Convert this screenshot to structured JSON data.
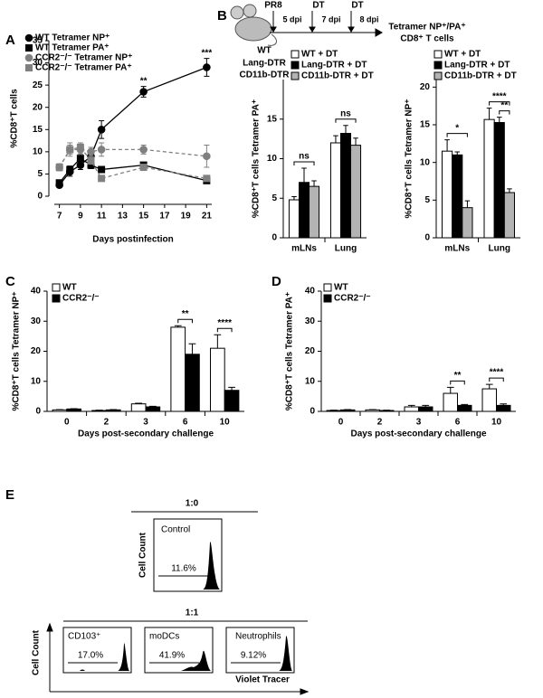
{
  "chart_data": [
    {
      "panel": "A",
      "type": "line",
      "y_label": "%CD8⁺T cells",
      "x_label": "Days postinfection",
      "x": [
        7,
        8,
        9,
        10,
        11,
        15,
        21
      ],
      "xlim": [
        6,
        22
      ],
      "xticks": [
        7,
        9,
        11,
        13,
        15,
        17,
        19,
        21
      ],
      "ylim": [
        0,
        35
      ],
      "yticks": [
        0,
        5,
        10,
        15,
        20,
        25,
        30,
        35
      ],
      "series": [
        {
          "name": "WT Tetramer NP⁺",
          "color": "#000000",
          "marker": "circle",
          "dashed": false,
          "values": [
            2.5,
            5.5,
            7,
            9,
            15,
            23.5,
            29
          ],
          "errors": [
            0.5,
            1,
            1,
            1,
            2,
            1.2,
            2
          ]
        },
        {
          "name": "WT Tetramer PA⁺",
          "color": "#000000",
          "marker": "square",
          "dashed": false,
          "values": [
            3,
            6,
            8.5,
            7,
            6,
            7,
            3.5
          ],
          "errors": [
            0.3,
            0.8,
            1,
            0.8,
            0.6,
            0.5,
            0.3
          ]
        },
        {
          "name": "CCR2⁻/⁻ Tetramer NP⁺",
          "color": "#808080",
          "marker": "circle",
          "dashed": true,
          "values": [
            6.5,
            10.5,
            10.5,
            10,
            10.5,
            10.5,
            9
          ],
          "errors": [
            0.8,
            1,
            1,
            1,
            1.5,
            1,
            2.5
          ]
        },
        {
          "name": "CCR2⁻/⁻ Tetramer PA⁺",
          "color": "#808080",
          "marker": "square",
          "dashed": true,
          "values": [
            6.5,
            10.5,
            11,
            8,
            4,
            6.5,
            4
          ],
          "errors": [
            0.8,
            1.5,
            1,
            0.8,
            0.5,
            0.5,
            0.5
          ]
        }
      ],
      "annotations": [
        {
          "text": "**",
          "x": 15
        },
        {
          "text": "***",
          "x": 21
        }
      ]
    },
    {
      "type": "bar",
      "y_label": "%CD8⁺T cells Tetramer PA⁺",
      "categories": [
        "mLNs",
        "Lung"
      ],
      "ylim": [
        0,
        20
      ],
      "yticks": [
        0,
        5,
        10,
        15
      ],
      "series": [
        {
          "name": "WT + DT",
          "color": "#ffffff",
          "values": [
            4.8,
            12
          ],
          "errors": [
            0.4,
            0.9
          ]
        },
        {
          "name": "Lang-DTR + DT",
          "color": "#000000",
          "values": [
            7,
            13.2
          ],
          "errors": [
            1.8,
            1
          ]
        },
        {
          "name": "CD11b-DTR + DT",
          "color": "#b3b3b3",
          "values": [
            6.5,
            11.7
          ],
          "errors": [
            0.7,
            0.9
          ]
        }
      ],
      "annotations": [
        {
          "text": "ns",
          "category": "mLNs",
          "between": [
            "WT + DT",
            "CD11b-DTR + DT"
          ]
        },
        {
          "text": "ns",
          "category": "Lung",
          "between": [
            "WT + DT",
            "CD11b-DTR + DT"
          ]
        }
      ]
    },
    {
      "type": "bar",
      "y_label": "%CD8⁺T cells Tetramer NP⁺",
      "categories": [
        "mLNs",
        "Lung"
      ],
      "ylim": [
        0,
        21
      ],
      "yticks": [
        0,
        5,
        10,
        15,
        20
      ],
      "series": [
        {
          "name": "WT + DT",
          "color": "#ffffff",
          "values": [
            11.5,
            15.7
          ],
          "errors": [
            1.5,
            1.5
          ]
        },
        {
          "name": "Lang-DTR + DT",
          "color": "#000000",
          "values": [
            11,
            15.3
          ],
          "errors": [
            0.4,
            0.7
          ]
        },
        {
          "name": "CD11b-DTR + DT",
          "color": "#b3b3b3",
          "values": [
            4,
            6
          ],
          "errors": [
            0.9,
            0.5
          ]
        }
      ],
      "annotations": [
        {
          "text": "*",
          "category": "mLNs",
          "between": [
            "WT + DT",
            "CD11b-DTR + DT"
          ]
        },
        {
          "text": "****",
          "category": "Lung",
          "between": [
            "WT + DT",
            "CD11b-DTR + DT"
          ]
        },
        {
          "text": "**",
          "category": "Lung",
          "between": [
            "Lang-DTR + DT",
            "CD11b-DTR + DT"
          ]
        }
      ]
    },
    {
      "panel": "C",
      "type": "bar",
      "y_label": "%CD8⁺T cells Tetramer NP⁺",
      "x_label": "Days post-secondary challenge",
      "categories": [
        "0",
        "2",
        "3",
        "6",
        "10"
      ],
      "ylim": [
        0,
        40
      ],
      "yticks": [
        0,
        10,
        20,
        30,
        40
      ],
      "series": [
        {
          "name": "WT",
          "color": "#ffffff",
          "values": [
            0.5,
            0.3,
            2.5,
            28,
            21
          ],
          "errors": [
            0.1,
            0.1,
            0.2,
            0.5,
            4.5
          ]
        },
        {
          "name": "CCR2⁻/⁻",
          "color": "#000000",
          "values": [
            0.8,
            0.5,
            1.5,
            19,
            7
          ],
          "errors": [
            0.1,
            0.1,
            0.2,
            3.5,
            1
          ]
        }
      ],
      "annotations": [
        {
          "text": "**",
          "category": "6",
          "between": [
            "WT",
            "CCR2⁻/⁻"
          ]
        },
        {
          "text": "****",
          "category": "10",
          "between": [
            "WT",
            "CCR2⁻/⁻"
          ]
        }
      ]
    },
    {
      "panel": "D",
      "type": "bar",
      "y_label": "%CD8⁺T cells Tetramer PA⁺",
      "x_label": "Days post-secondary challenge",
      "categories": [
        "0",
        "2",
        "3",
        "6",
        "10"
      ],
      "ylim": [
        0,
        40
      ],
      "yticks": [
        0,
        10,
        20,
        30,
        40
      ],
      "series": [
        {
          "name": "WT",
          "color": "#ffffff",
          "values": [
            0.3,
            0.5,
            1.5,
            6,
            7.5
          ],
          "errors": [
            0.1,
            0.1,
            0.5,
            2,
            1.5
          ]
        },
        {
          "name": "CCR2⁻/⁻",
          "color": "#000000",
          "values": [
            0.5,
            0.3,
            1.5,
            2,
            2
          ],
          "errors": [
            0.1,
            0.1,
            0.5,
            0.3,
            0.5
          ]
        }
      ],
      "annotations": [
        {
          "text": "**",
          "category": "6",
          "between": [
            "WT",
            "CCR2⁻/⁻"
          ]
        },
        {
          "text": "****",
          "category": "10",
          "between": [
            "WT",
            "CCR2⁻/⁻"
          ]
        }
      ]
    }
  ],
  "schema": {
    "panel": "B",
    "infection": "PR8",
    "treatments": [
      "DT",
      "DT"
    ],
    "timepoints": [
      "5 dpi",
      "7 dpi",
      "8 dpi"
    ],
    "readout": [
      "Tetramer NP⁺/PA⁺",
      "CD8⁺ T cells"
    ],
    "mice": [
      "WT",
      "Lang-DTR",
      "CD11b-DTR"
    ]
  },
  "flow_panel": {
    "panel": "E",
    "ratio_top": "1:0",
    "ratio_bottom": "1:1",
    "y_label": "Cell Count",
    "x_label": "Violet Tracer",
    "samples": [
      {
        "name": "Control",
        "percent": "11.6%"
      },
      {
        "name": "CD103⁺",
        "percent": "17.0%"
      },
      {
        "name": "moDCs",
        "percent": "41.9%"
      },
      {
        "name": "Neutrophils",
        "percent": "9.12%"
      }
    ]
  }
}
